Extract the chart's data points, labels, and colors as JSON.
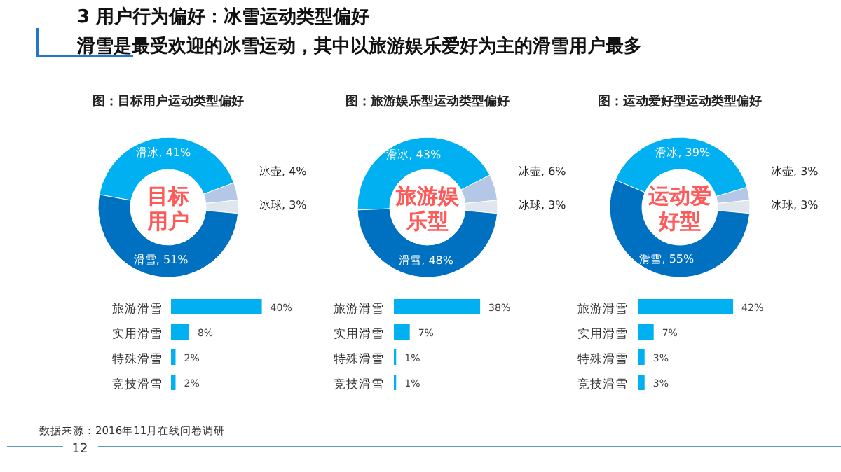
{
  "chart_data": [
    {
      "type": "donut",
      "title": "3 用户行为偏好：冰雪运动类型偏好",
      "subtitle": "滑雪是最受欢迎的冰雪运动，其中以旅游娱乐爱好为主的滑雪用户最多",
      "annotations": [
        "图：目标用户运动类型偏好",
        "目标用户"
      ],
      "categories": [
        "滑冰",
        "冰壶",
        "冰球",
        "滑雪"
      ],
      "values": [
        41,
        4,
        3,
        51
      ],
      "value_labels": [
        "41%",
        "4%",
        "3%",
        "51%"
      ],
      "colors": [
        "#00b0f0",
        "#b4c7e7",
        "#dfe6ee",
        "#0070c0"
      ]
    },
    {
      "type": "donut",
      "annotations": [
        "图：旅游娱乐型运动类型偏好",
        "旅游娱乐型"
      ],
      "categories": [
        "滑冰",
        "冰壶",
        "冰球",
        "滑雪"
      ],
      "values": [
        43,
        6,
        3,
        48
      ],
      "value_labels": [
        "43%",
        "6%",
        "3%",
        "48%"
      ],
      "colors": [
        "#00b0f0",
        "#b4c7e7",
        "#dfe6ee",
        "#0070c0"
      ]
    },
    {
      "type": "donut",
      "annotations": [
        "图：运动爱好型运动类型偏好",
        "运动爱好型"
      ],
      "categories": [
        "滑冰",
        "冰壶",
        "冰球",
        "滑雪"
      ],
      "values": [
        39,
        3,
        3,
        55
      ],
      "value_labels": [
        "39%",
        "3%",
        "3%",
        "55%"
      ],
      "colors": [
        "#00b0f0",
        "#b4c7e7",
        "#dfe6ee",
        "#0070c0"
      ]
    },
    {
      "type": "bar",
      "orientation": "horizontal",
      "categories": [
        "旅游滑雪",
        "实用滑雪",
        "特殊滑雪",
        "竞技滑雪"
      ],
      "values": [
        40,
        8,
        2,
        2
      ],
      "value_labels": [
        "40%",
        "8%",
        "2%",
        "2%"
      ],
      "color": "#00b0f0"
    },
    {
      "type": "bar",
      "orientation": "horizontal",
      "categories": [
        "旅游滑雪",
        "实用滑雪",
        "特殊滑雪",
        "竞技滑雪"
      ],
      "values": [
        38,
        7,
        1,
        1
      ],
      "value_labels": [
        "38%",
        "7%",
        "1%",
        "1%"
      ],
      "color": "#00b0f0"
    },
    {
      "type": "bar",
      "orientation": "horizontal",
      "categories": [
        "旅游滑雪",
        "实用滑雪",
        "特殊滑雪",
        "竞技滑雪"
      ],
      "values": [
        42,
        7,
        3,
        3
      ],
      "value_labels": [
        "42%",
        "7%",
        "3%",
        "3%"
      ],
      "color": "#00b0f0",
      "annotations": [
        "数据来源：2016年11月在线问卷调研",
        "12"
      ]
    }
  ]
}
